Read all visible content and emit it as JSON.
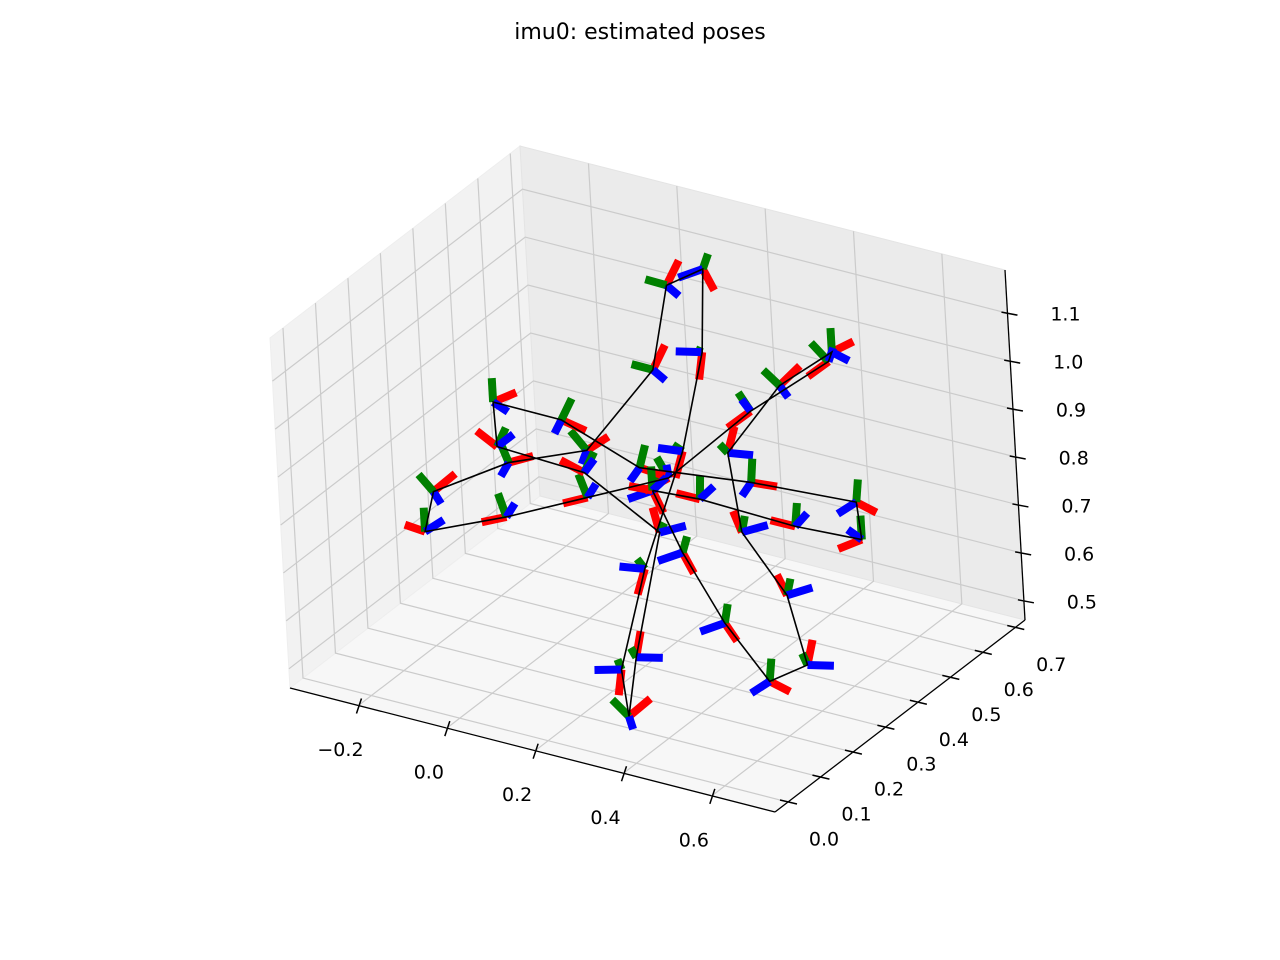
{
  "chart_data": {
    "type": "line3d",
    "title": "imu0: estimated poses",
    "xlim": [
      -0.355,
      0.743
    ],
    "ylim": [
      -0.04,
      0.73
    ],
    "zlim": [
      0.46,
      1.19
    ],
    "xticks": [
      {
        "value": -0.2,
        "label": "−0.2"
      },
      {
        "value": 0,
        "label": "0.0"
      },
      0.2,
      0.4,
      0.6
    ],
    "yticks": [
      {
        "value": 0,
        "label": "0.0"
      },
      0.1,
      0.2,
      0.3,
      0.4,
      0.5,
      0.6,
      0.7
    ],
    "zticks": [
      0.5,
      0.6,
      0.7,
      0.8,
      0.9,
      {
        "value": 1,
        "label": "1.0"
      },
      1.1
    ],
    "grid": true,
    "pose_axis_colors": [
      "#ff0000",
      "#008000",
      "#0000ff"
    ],
    "series": [
      {
        "color": "#000000",
        "x": [
          0.2,
          0.3,
          0.45,
          0.6,
          0.65,
          0.55,
          0.4,
          0.3,
          0.35,
          0.42,
          0.38,
          0.28,
          0.2,
          0.05,
          -0.1,
          -0.25,
          -0.28,
          -0.15,
          0.0,
          0.1,
          0.08,
          0.15,
          0.2,
          0.22,
          0.25,
          0.3,
          0.35,
          0.32,
          0.25,
          0.1,
          -0.05,
          -0.1,
          0.0,
          0.15,
          0.35,
          0.55,
          0.62,
          0.5,
          0.3,
          0.2
        ],
        "y": [
          0.35,
          0.3,
          0.22,
          0.15,
          0.2,
          0.28,
          0.35,
          0.45,
          0.55,
          0.62,
          0.66,
          0.55,
          0.4,
          0.35,
          0.3,
          0.25,
          0.32,
          0.38,
          0.42,
          0.5,
          0.58,
          0.6,
          0.52,
          0.42,
          0.25,
          0.1,
          0.05,
          0.12,
          0.3,
          0.28,
          0.22,
          0.28,
          0.35,
          0.38,
          0.45,
          0.5,
          0.42,
          0.38,
          0.36,
          0.35
        ],
        "z": [
          0.8,
          0.72,
          0.65,
          0.6,
          0.62,
          0.7,
          0.76,
          0.85,
          0.95,
          1.0,
          0.95,
          0.88,
          0.8,
          0.75,
          0.7,
          0.66,
          0.7,
          0.76,
          0.8,
          0.95,
          1.08,
          1.12,
          1.0,
          0.85,
          0.7,
          0.58,
          0.52,
          0.6,
          0.75,
          0.85,
          0.9,
          0.95,
          0.9,
          0.82,
          0.8,
          0.78,
          0.76,
          0.78,
          0.8,
          0.8
        ]
      }
    ]
  }
}
